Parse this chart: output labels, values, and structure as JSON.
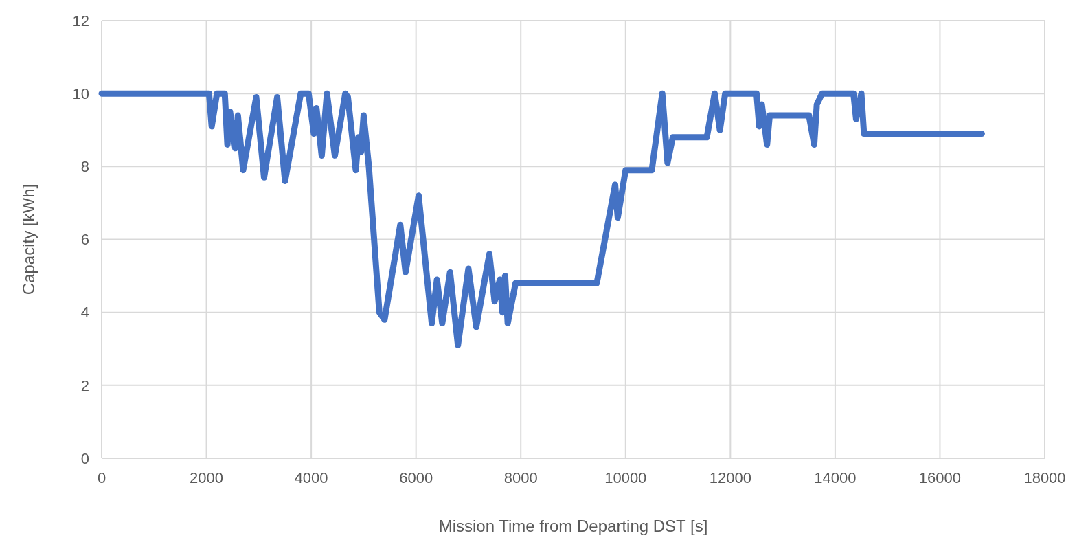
{
  "chart_data": {
    "type": "line",
    "xlabel": "Mission Time from Departing DST [s]",
    "ylabel": "Capacity [kWh]",
    "xlim": [
      0,
      18000
    ],
    "xticks": [
      0,
      2000,
      4000,
      6000,
      8000,
      10000,
      12000,
      14000,
      16000,
      18000
    ],
    "ylim": [
      0,
      12
    ],
    "yticks": [
      0,
      2,
      4,
      6,
      8,
      10,
      12
    ],
    "grid": true,
    "marker": "none",
    "line_style": "solid",
    "series": [
      {
        "color": "#4472c4",
        "x": [
          0,
          2050,
          2100,
          2200,
          2350,
          2400,
          2450,
          2550,
          2600,
          2700,
          2950,
          3100,
          3350,
          3500,
          3800,
          3950,
          4050,
          4100,
          4200,
          4300,
          4450,
          4650,
          4700,
          4850,
          4900,
          4950,
          5000,
          5100,
          5300,
          5400,
          5700,
          5800,
          6050,
          6300,
          6400,
          6500,
          6650,
          6800,
          7000,
          7150,
          7400,
          7500,
          7600,
          7650,
          7700,
          7750,
          7900,
          9450,
          9800,
          9850,
          10000,
          10500,
          10700,
          10800,
          10900,
          11550,
          11700,
          11800,
          11900,
          12500,
          12550,
          12600,
          12700,
          12750,
          13500,
          13600,
          13650,
          13750,
          14350,
          14400,
          14500,
          14550,
          16800
        ],
        "values": [
          10,
          10,
          9.1,
          10,
          10,
          8.6,
          9.5,
          8.5,
          9.4,
          7.9,
          9.9,
          7.7,
          9.9,
          7.6,
          10,
          10,
          8.9,
          9.6,
          8.3,
          10,
          8.3,
          10,
          9.9,
          7.9,
          8.8,
          8.4,
          9.4,
          8,
          4,
          3.8,
          6.4,
          5.1,
          7.2,
          3.7,
          4.9,
          3.7,
          5.1,
          3.1,
          5.2,
          3.6,
          5.6,
          4.3,
          4.9,
          4,
          5,
          3.7,
          4.8,
          4.8,
          7.5,
          6.6,
          7.9,
          7.9,
          10,
          8.1,
          8.8,
          8.8,
          10,
          9,
          10,
          10,
          9.1,
          9.7,
          8.6,
          9.4,
          9.4,
          8.6,
          9.7,
          10,
          10,
          9.3,
          10,
          8.9,
          8.9
        ]
      }
    ]
  }
}
